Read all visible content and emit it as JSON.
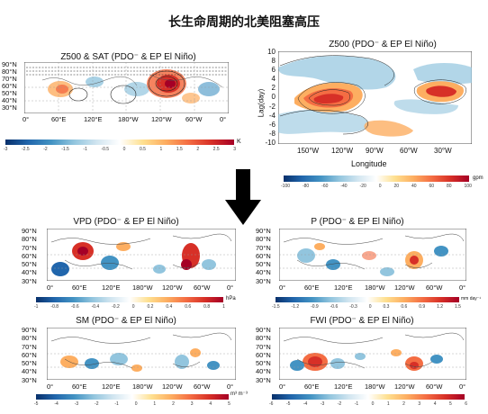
{
  "figure": {
    "title": "长生命周期的北美阻塞高压"
  },
  "panels": {
    "z500_sat": {
      "title": "Z500 & SAT (PDO⁻ & EP El Niño)",
      "lat_ticks": [
        "90°N",
        "80°N",
        "70°N",
        "60°N",
        "50°N",
        "40°N",
        "30°N"
      ],
      "lon_ticks": [
        "0°",
        "60°E",
        "120°E",
        "180°W",
        "120°W",
        "60°W",
        "0°"
      ],
      "colorbar_ticks": [
        "-3",
        "-2.5",
        "-2",
        "-1.5",
        "-1",
        "-0.5",
        "0",
        "0.5",
        "1",
        "1.5",
        "2",
        "2.5",
        "3"
      ],
      "unit": "K"
    },
    "hovmoller": {
      "title": "Z500 (PDO⁻ & EP El Niño)",
      "ylabel": "Lag(day)",
      "xlabel": "Longitude",
      "y_ticks": [
        "10",
        "8",
        "6",
        "4",
        "2",
        "0",
        "-2",
        "-4",
        "-6",
        "-8",
        "-10"
      ],
      "x_ticks": [
        "150°W",
        "120°W",
        "90°W",
        "60°W",
        "30°W"
      ],
      "colorbar_ticks": [
        "-100",
        "-80",
        "-60",
        "-40",
        "-20",
        "0",
        "20",
        "40",
        "60",
        "80",
        "100"
      ],
      "unit": "gpm"
    },
    "vpd": {
      "title": "VPD (PDO⁻ & EP El Niño)",
      "lat_ticks": [
        "90°N",
        "80°N",
        "70°N",
        "60°N",
        "50°N",
        "40°N",
        "30°N"
      ],
      "lon_ticks": [
        "0°",
        "60°E",
        "120°E",
        "180°W",
        "120°W",
        "60°W",
        "0°"
      ],
      "colorbar_ticks": [
        "-1",
        "-0.8",
        "-0.6",
        "-0.4",
        "-0.2",
        "0",
        "0.2",
        "0.4",
        "0.6",
        "0.8",
        "1"
      ],
      "unit": "hPa"
    },
    "p": {
      "title": "P (PDO⁻ & EP El Niño)",
      "lat_ticks": [
        "90°N",
        "80°N",
        "70°N",
        "60°N",
        "50°N",
        "40°N",
        "30°N"
      ],
      "lon_ticks": [
        "0°",
        "60°E",
        "120°E",
        "180°W",
        "120°W",
        "60°W",
        "0°"
      ],
      "colorbar_ticks": [
        "-1.5",
        "-1.2",
        "-0.9",
        "-0.6",
        "-0.3",
        "0",
        "0.3",
        "0.6",
        "0.9",
        "1.2",
        "1.5"
      ],
      "unit": "mm day⁻¹"
    },
    "sm": {
      "title": "SM (PDO⁻ & EP El Niño)",
      "lat_ticks": [
        "90°N",
        "80°N",
        "70°N",
        "60°N",
        "50°N",
        "40°N",
        "30°N"
      ],
      "lon_ticks": [
        "0°",
        "60°E",
        "120°E",
        "180°W",
        "120°W",
        "60°W",
        "0°"
      ],
      "colorbar_ticks": [
        "-5",
        "-4",
        "-3",
        "-2",
        "-1",
        "0",
        "1",
        "2",
        "3",
        "4",
        "5"
      ],
      "unit": "m³ m⁻³"
    },
    "fwi": {
      "title": "FWI (PDO⁻ & EP El Niño)",
      "lat_ticks": [
        "90°N",
        "80°N",
        "70°N",
        "60°N",
        "50°N",
        "40°N",
        "30°N"
      ],
      "lon_ticks": [
        "0°",
        "60°E",
        "120°E",
        "180°W",
        "120°W",
        "60°W",
        "0°"
      ],
      "colorbar_ticks": [
        "-6",
        "-5",
        "-4",
        "-3",
        "-2",
        "-1",
        "0",
        "1",
        "2",
        "3",
        "4",
        "5",
        "6"
      ],
      "unit": ""
    }
  },
  "colors": {
    "diverging_scale": [
      "#08306b",
      "#2166ac",
      "#4393c3",
      "#92c5de",
      "#d1e5f0",
      "#ffffff",
      "#fee090",
      "#fdae61",
      "#f46d43",
      "#d73027",
      "#a50026"
    ],
    "arrow": "#000000"
  }
}
